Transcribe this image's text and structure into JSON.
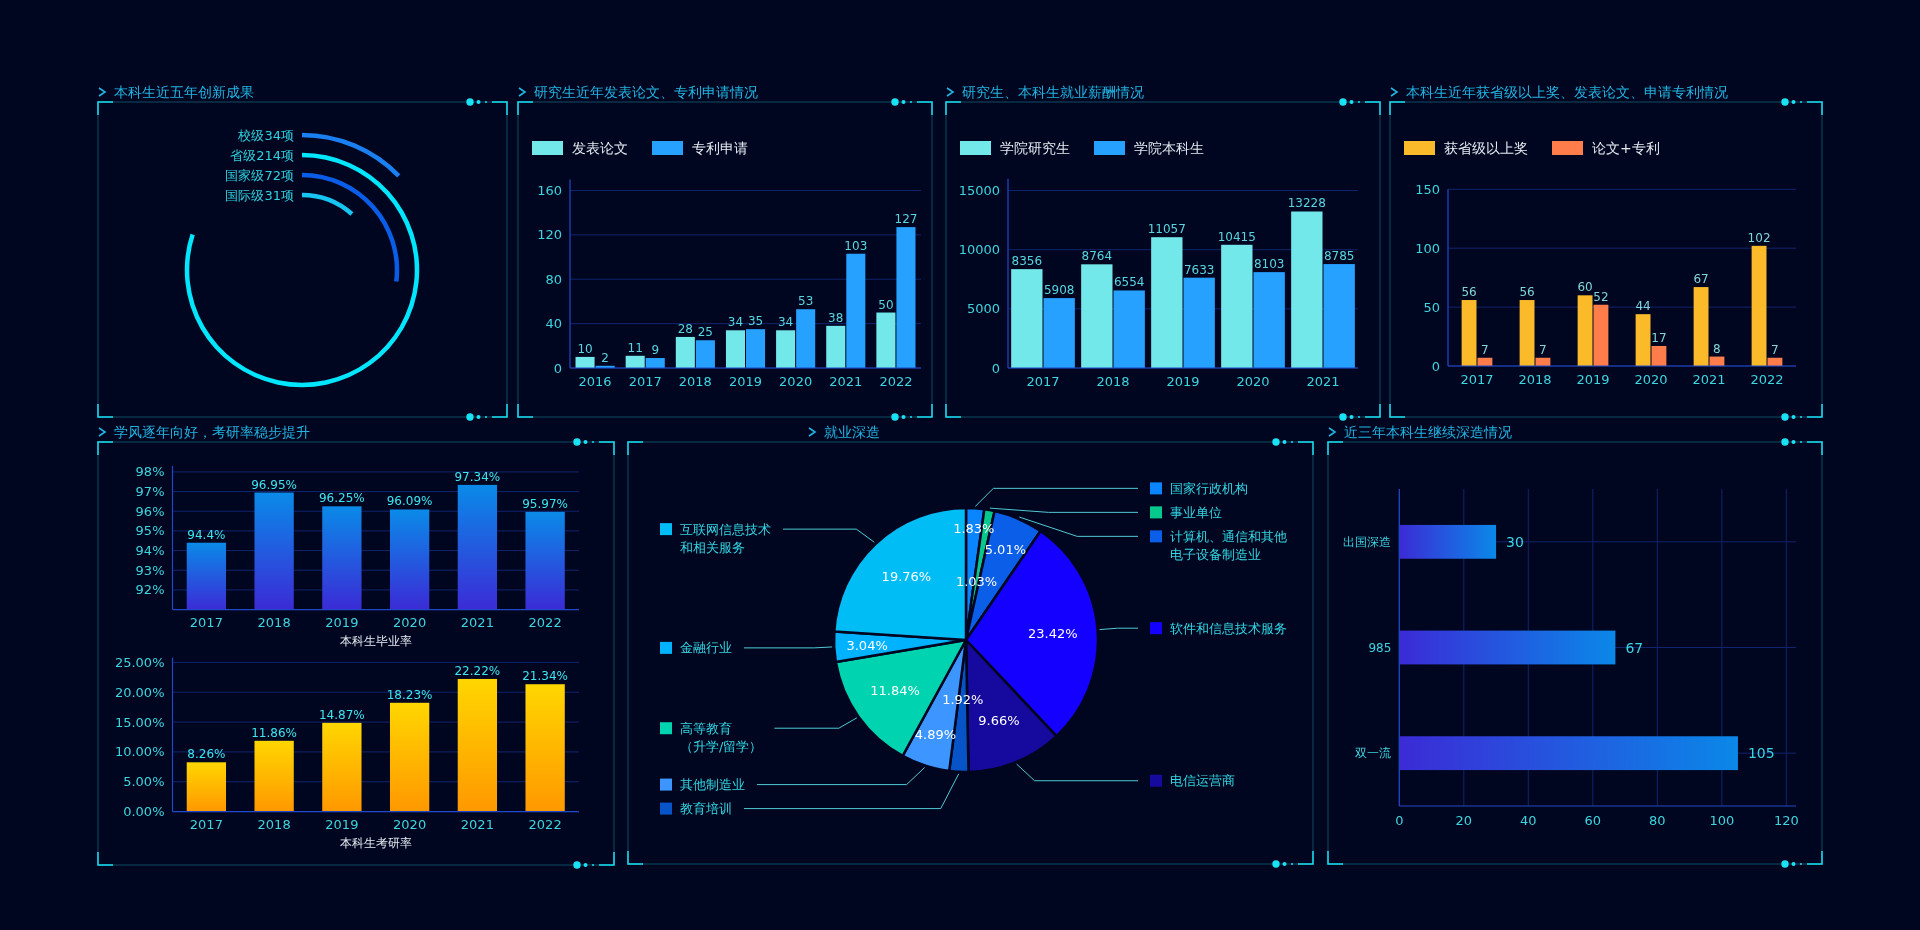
{
  "chart_data": [
    {
      "type": "other",
      "title": "本科生近五年创新成果",
      "categories": [
        "校级",
        "省级",
        "国家级",
        "国际级"
      ],
      "values": [
        34,
        214,
        72,
        31
      ],
      "value_labels": [
        "34项",
        "214项",
        "72项",
        "31项"
      ],
      "colors": [
        "#1a7ff0",
        "#00e6ff",
        "#0a5de6",
        "#17c5f3"
      ]
    },
    {
      "type": "bar",
      "title": "研究生近年发表论文、专利申请情况",
      "categories": [
        "2016",
        "2017",
        "2018",
        "2019",
        "2020",
        "2021",
        "2022"
      ],
      "series": [
        {
          "name": "发表论文",
          "color": "#72e8ea",
          "values": [
            10,
            11,
            28,
            34,
            34,
            38,
            50
          ]
        },
        {
          "name": "专利申请",
          "color": "#27a1ff",
          "values": [
            2,
            9,
            25,
            35,
            53,
            103,
            127
          ]
        }
      ],
      "ylim": [
        0,
        170
      ],
      "yticks": [
        0,
        40,
        80,
        120,
        160
      ],
      "grid": "y",
      "legend": "top left",
      "data_labels": true
    },
    {
      "type": "bar",
      "title": "研究生、本科生就业薪酬情况",
      "categories": [
        "2017",
        "2018",
        "2019",
        "2020",
        "2021"
      ],
      "series": [
        {
          "name": "学院研究生",
          "color": "#72e8ea",
          "values": [
            8356,
            8764,
            11057,
            10415,
            13228
          ]
        },
        {
          "name": "学院本科生",
          "color": "#27a1ff",
          "values": [
            5908,
            6554,
            7633,
            8103,
            8785
          ]
        }
      ],
      "ylim": [
        0,
        16000
      ],
      "yticks": [
        0,
        5000,
        10000,
        15000
      ],
      "grid": "y",
      "legend": "top left",
      "data_labels": true
    },
    {
      "type": "bar",
      "title": "本科生近年获省级以上奖、发表论文、申请专利情况",
      "categories": [
        "2017",
        "2018",
        "2019",
        "2020",
        "2021",
        "2022"
      ],
      "series": [
        {
          "name": "获省级以上奖",
          "color": "#fbba2a",
          "values": [
            56,
            56,
            60,
            44,
            67,
            102
          ]
        },
        {
          "name": "论文+专利",
          "color": "#ff7d4a",
          "values": [
            7,
            7,
            52,
            17,
            8,
            7
          ]
        }
      ],
      "ylim": [
        0,
        150
      ],
      "yticks": [
        0,
        50,
        100,
        150
      ],
      "grid": "y",
      "legend": "top left",
      "data_labels": true
    },
    {
      "type": "bar",
      "title": "学风逐年向好，考研率稳步提升",
      "xlabel": "本科生毕业率",
      "categories": [
        "2017",
        "2018",
        "2019",
        "2020",
        "2021",
        "2022"
      ],
      "values": [
        94.4,
        96.95,
        96.25,
        96.09,
        97.34,
        95.97
      ],
      "value_labels": [
        "94.4%",
        "96.95%",
        "96.25%",
        "96.09%",
        "97.34%",
        "95.97%"
      ],
      "color": "#0a8ae8",
      "ylim": [
        91,
        98.3
      ],
      "yticks": [
        {
          "value": 92,
          "label": "92%"
        },
        {
          "value": 93,
          "label": "93%"
        },
        {
          "value": 94,
          "label": "94%"
        },
        {
          "value": 95,
          "label": "95%"
        },
        {
          "value": 96,
          "label": "96%"
        },
        {
          "value": 97,
          "label": "97%"
        },
        {
          "value": 98,
          "label": "98%"
        }
      ],
      "grid": "y"
    },
    {
      "type": "bar",
      "xlabel": "本科生考研率",
      "categories": [
        "2017",
        "2018",
        "2019",
        "2020",
        "2021",
        "2022"
      ],
      "values": [
        8.26,
        11.86,
        14.87,
        18.23,
        22.22,
        21.34
      ],
      "value_labels": [
        "8.26%",
        "11.86%",
        "14.87%",
        "18.23%",
        "22.22%",
        "21.34%"
      ],
      "color": "#ffd600",
      "ylim": [
        0,
        25.8
      ],
      "yticks": [
        {
          "value": 0,
          "label": "0.00%"
        },
        {
          "value": 5,
          "label": "5.00%"
        },
        {
          "value": 10,
          "label": "10.00%"
        },
        {
          "value": 15,
          "label": "15.00%"
        },
        {
          "value": 20,
          "label": "20.00%"
        },
        {
          "value": 25,
          "label": "25.00%"
        }
      ],
      "grid": "y"
    },
    {
      "type": "pie",
      "title": "就业深造",
      "categories": [
        "国家行政机构",
        "事业单位",
        "计算机、通信和其他电子设备制造业",
        "软件和信息技术服务",
        "电信运营商",
        "教育培训",
        "其他制造业",
        "高等教育（升学/留学）",
        "金融行业",
        "互联网信息技术和相关服务"
      ],
      "values": [
        1.83,
        1.03,
        5.01,
        23.42,
        9.66,
        1.92,
        4.89,
        11.84,
        3.04,
        19.76
      ],
      "value_labels": [
        "1.83%",
        "1.03%",
        "5.01%",
        "23.42%",
        "9.66%",
        "1.92%",
        "4.89%",
        "11.84%",
        "3.04%",
        "19.76%"
      ],
      "colors": [
        "#0a84ff",
        "#05c98c",
        "#0a5ee8",
        "#1400ff",
        "#15099e",
        "#0654c8",
        "#3d96ff",
        "#00d3b0",
        "#00b2ff",
        "#00bdf6"
      ],
      "legend": "left right"
    },
    {
      "type": "bar",
      "title": "近三年本科生继续深造情况",
      "orientation": "horizontal",
      "categories": [
        "出国深造",
        "985",
        "双一流"
      ],
      "values": [
        30,
        67,
        105
      ],
      "color": "#0a88e8",
      "xlim": [
        0,
        123
      ],
      "xticks": [
        0,
        20,
        40,
        60,
        80,
        100,
        120
      ],
      "grid": true,
      "data_labels": true
    }
  ]
}
